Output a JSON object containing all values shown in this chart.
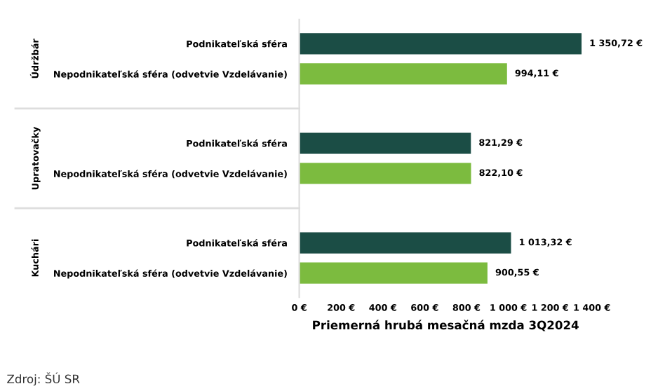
{
  "chart_data": {
    "type": "bar",
    "orientation": "horizontal",
    "xlabel": "Priemerná hrubá mesačná mzda 3Q2024",
    "categories": [
      "Podnikateľská sféra",
      "Nepodnikateľská sféra (odvetvie Vzdelávanie)",
      "Podnikateľská sféra",
      "Nepodnikateľská sféra (odvetvie Vzdelávanie)",
      "Podnikateľská sféra",
      "Nepodnikateľská sféra (odvetvie Vzdelávanie)"
    ],
    "values": [
      1350.72,
      994.11,
      821.29,
      822.1,
      1013.32,
      900.55
    ],
    "colors": [
      "#1b4d45",
      "#7cbb3f",
      "#1b4d45",
      "#7cbb3f",
      "#1b4d45",
      "#7cbb3f"
    ],
    "value_labels": [
      "1 350,72 €",
      "994,11 €",
      "821,29 €",
      "822,10 €",
      "1 013,32 €",
      "900,55 €"
    ],
    "xlim": [
      0,
      1400
    ],
    "xticks": [
      {
        "value": 0,
        "label": "0 €"
      },
      {
        "value": 200,
        "label": "200 €"
      },
      {
        "value": 400,
        "label": "400 €"
      },
      {
        "value": 600,
        "label": "600 €"
      },
      {
        "value": 800,
        "label": "800 €"
      },
      {
        "value": 1000,
        "label": "1 000 €"
      },
      {
        "value": 1200,
        "label": "1 200 €"
      },
      {
        "value": 1400,
        "label": "1 400 €"
      }
    ],
    "annotations": [
      "Údržbár",
      "Upratovačky",
      "Kuchári",
      "Zdroj: ŠÚ SR"
    ],
    "grid": false
  }
}
